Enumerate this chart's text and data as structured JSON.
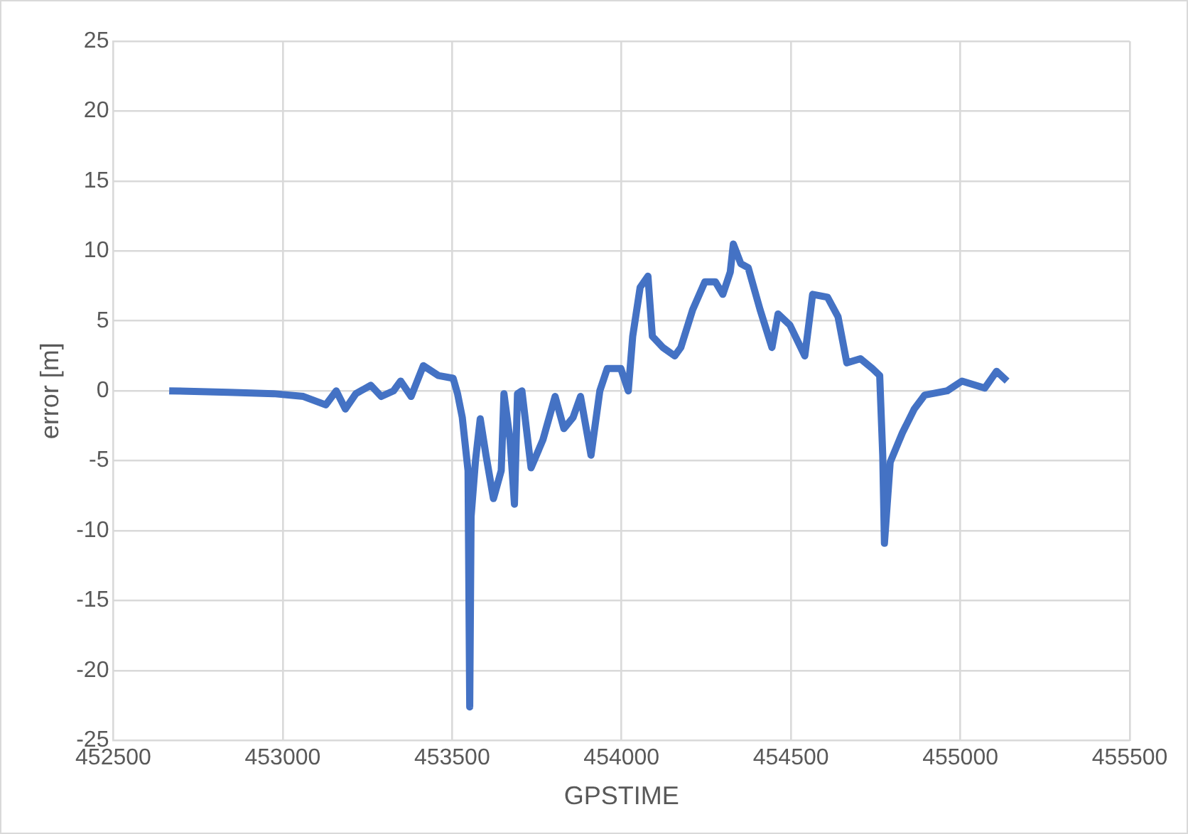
{
  "chart_data": {
    "type": "line",
    "xlabel": "GPSTIME",
    "ylabel": "error [m]",
    "xlim": [
      452500,
      455500
    ],
    "xticks": [
      452500,
      453000,
      453500,
      454000,
      454500,
      455000,
      455500
    ],
    "ylim": [
      -25,
      25
    ],
    "yticks": [
      -25,
      -20,
      -15,
      -10,
      -5,
      0,
      5,
      10,
      15,
      20,
      25
    ],
    "grid": true,
    "legend": false,
    "marker": "none",
    "line_style": "solid",
    "series": [
      {
        "color": "#4472c4",
        "x": [
          452665,
          452840,
          452973,
          453061,
          453127,
          453158,
          453185,
          453216,
          453260,
          453291,
          453327,
          453348,
          453379,
          453415,
          453459,
          453503,
          453516,
          453530,
          453547,
          453552,
          453556,
          453569,
          453583,
          453600,
          453622,
          453645,
          453653,
          453671,
          453684,
          453693,
          453706,
          453733,
          453768,
          453804,
          453830,
          453857,
          453879,
          453910,
          453936,
          453958,
          453998,
          454020,
          454033,
          454055,
          454078,
          454091,
          454122,
          454157,
          454175,
          454210,
          454246,
          454277,
          454299,
          454321,
          454330,
          454352,
          454374,
          454409,
          454444,
          454462,
          454497,
          454541,
          454564,
          454608,
          454639,
          454665,
          454705,
          454740,
          454762,
          454771,
          454776,
          454793,
          454829,
          454864,
          454895,
          454961,
          455005,
          455072,
          455107,
          455138
        ],
        "values": [
          0,
          -0.1,
          -0.2,
          -0.4,
          -1,
          0,
          -1.3,
          -0.2,
          0.4,
          -0.4,
          0,
          0.7,
          -0.4,
          1.8,
          1.1,
          0.9,
          -0.2,
          -1.9,
          -5.7,
          -22.6,
          -9,
          -5,
          -2,
          -4.6,
          -7.7,
          -5.7,
          -0.2,
          -3.5,
          -8.1,
          -0.2,
          0,
          -5.5,
          -3.5,
          -0.4,
          -2.7,
          -1.9,
          -0.4,
          -4.6,
          0,
          1.6,
          1.6,
          0,
          3.9,
          7.4,
          8.2,
          3.9,
          3.1,
          2.5,
          3.1,
          5.8,
          7.8,
          7.8,
          6.9,
          8.5,
          10.5,
          9.1,
          8.8,
          5.8,
          3.1,
          5.5,
          4.7,
          2.5,
          6.9,
          6.7,
          5.3,
          2,
          2.3,
          1.6,
          1.1,
          -4.6,
          -10.9,
          -5.1,
          -3,
          -1.3,
          -0.3,
          0,
          0.7,
          0.2,
          1.4,
          0.7
        ]
      }
    ]
  }
}
